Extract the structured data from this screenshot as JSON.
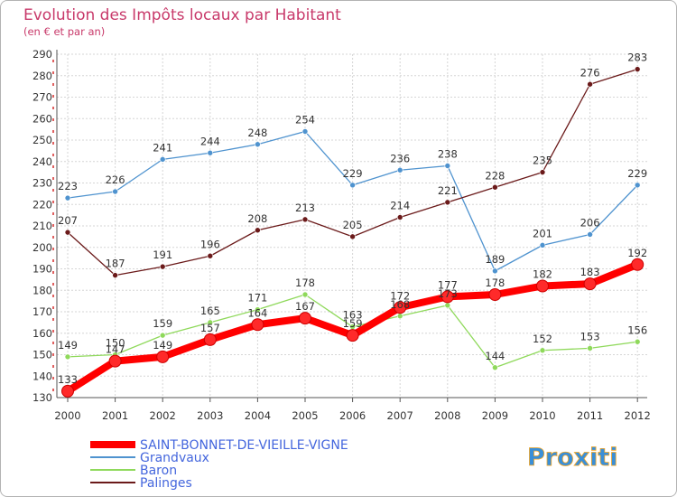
{
  "chart_data": {
    "type": "line",
    "title": "Evolution des Impôts locaux par Habitant",
    "subtitle": "(en € et par an)",
    "xlabel": "",
    "ylabel": "",
    "categories": [
      "2000",
      "2001",
      "2002",
      "2003",
      "2004",
      "2005",
      "2006",
      "2007",
      "2008",
      "2009",
      "2010",
      "2011",
      "2012"
    ],
    "ylim": [
      130,
      290
    ],
    "yticks": [
      130,
      140,
      150,
      160,
      170,
      180,
      190,
      200,
      210,
      220,
      230,
      240,
      250,
      260,
      270,
      280,
      290
    ],
    "grid": true,
    "legend_position": "bottom-left",
    "series": [
      {
        "name": "SAINT-BONNET-DE-VIEILLE-VIGNE",
        "color": "#ff0000",
        "values": [
          133,
          147,
          149,
          157,
          164,
          167,
          159,
          172,
          177,
          178,
          182,
          183,
          192
        ]
      },
      {
        "name": "Grandvaux",
        "color": "#4f93cf",
        "values": [
          223,
          226,
          241,
          244,
          248,
          254,
          229,
          236,
          238,
          189,
          201,
          206,
          229
        ]
      },
      {
        "name": "Baron",
        "color": "#8fd95b",
        "values": [
          149,
          150,
          159,
          165,
          171,
          178,
          163,
          168,
          173,
          144,
          152,
          153,
          156
        ]
      },
      {
        "name": "Palinges",
        "color": "#6b1a1a",
        "values": [
          207,
          187,
          191,
          196,
          208,
          213,
          205,
          214,
          221,
          228,
          235,
          276,
          283
        ]
      }
    ]
  },
  "logo": {
    "text": "Proxiti"
  }
}
